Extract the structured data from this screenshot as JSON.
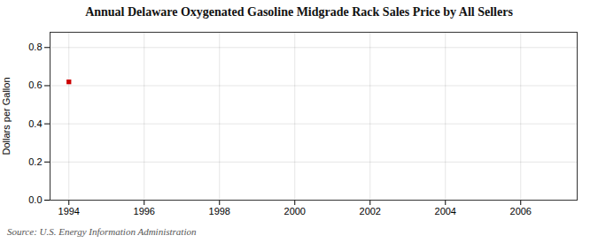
{
  "chart_data": {
    "type": "scatter",
    "title": "Annual Delaware Oxygenated Gasoline Midgrade Rack Sales Price by All Sellers",
    "ylabel": "Dollars per Gallon",
    "source": "Source: U.S. Energy Information Administration",
    "x": [
      1994
    ],
    "values": [
      0.62
    ],
    "color": "#cc0000",
    "marker": "square",
    "xlim": [
      1993.5,
      2007.5
    ],
    "ylim": [
      0.0,
      0.88
    ],
    "xticks": [
      1994,
      1996,
      1998,
      2000,
      2002,
      2004,
      2006
    ],
    "yticks": [
      {
        "value": 0.0,
        "label": "0.0"
      },
      0.2,
      0.4,
      0.6,
      0.8
    ],
    "grid": true
  }
}
